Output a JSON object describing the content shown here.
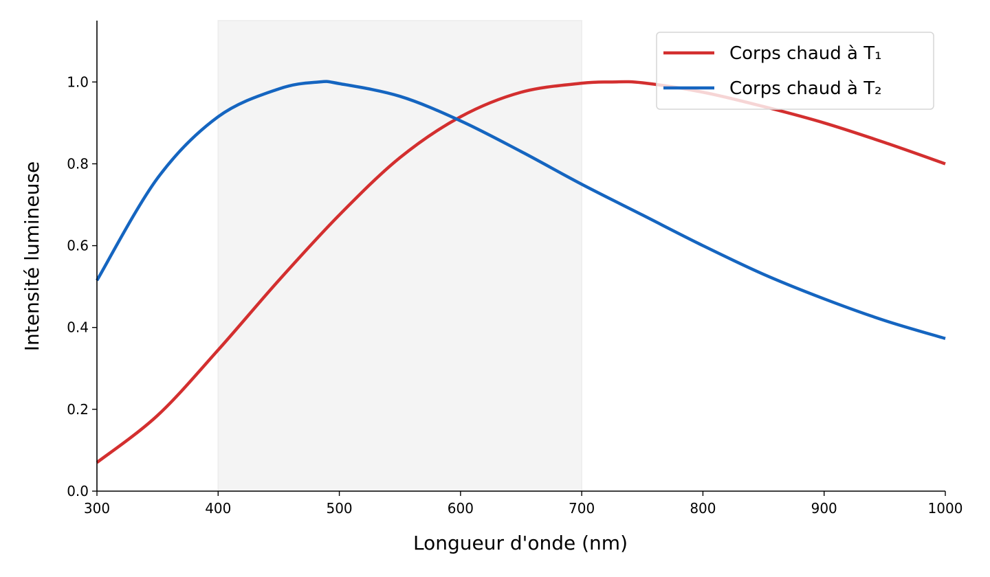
{
  "chart_data": {
    "type": "line",
    "title": "",
    "xlabel": "Longueur d'onde (nm)",
    "ylabel": "Intensité lumineuse",
    "xlim": [
      300,
      1000
    ],
    "ylim": [
      0,
      1.15
    ],
    "xticks": [
      "300",
      "400",
      "500",
      "600",
      "700",
      "800",
      "900",
      "1000"
    ],
    "yticks": [
      "0.0",
      "0.2",
      "0.4",
      "0.6",
      "0.8",
      "1.0"
    ],
    "grid": false,
    "legend_position": "top-right",
    "shaded_band": {
      "x_start": 400,
      "x_end": 700,
      "color": "#f4f4f4"
    },
    "series": [
      {
        "name": "Corps chaud à T₁",
        "color": "#d32f2f",
        "x": [
          300,
          350,
          400,
          450,
          500,
          550,
          600,
          650,
          700,
          725,
          750,
          800,
          850,
          900,
          950,
          1000
        ],
        "y": [
          0.07,
          0.185,
          0.345,
          0.515,
          0.675,
          0.815,
          0.915,
          0.975,
          0.997,
          1.0,
          0.998,
          0.975,
          0.94,
          0.9,
          0.852,
          0.8
        ]
      },
      {
        "name": "Corps chaud à T₂",
        "color": "#1565c0",
        "x": [
          300,
          350,
          400,
          450,
          483,
          500,
          550,
          600,
          650,
          700,
          750,
          800,
          850,
          900,
          950,
          1000
        ],
        "y": [
          0.515,
          0.765,
          0.915,
          0.983,
          1.0,
          0.996,
          0.965,
          0.905,
          0.83,
          0.75,
          0.675,
          0.6,
          0.53,
          0.47,
          0.417,
          0.373
        ]
      }
    ]
  }
}
